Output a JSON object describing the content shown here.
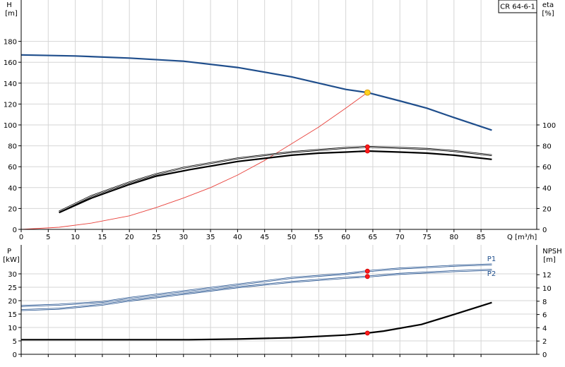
{
  "chart_data": [
    {
      "type": "line",
      "panel": "upper",
      "model_label": "CR 64-6-1",
      "y_left_label": [
        "H",
        "[m]"
      ],
      "y_right_label": [
        "eta",
        "[%]"
      ],
      "x_label": "Q [m³/h]",
      "xlim": [
        0,
        90
      ],
      "x_ticks": [
        0,
        5,
        10,
        15,
        20,
        25,
        30,
        35,
        40,
        45,
        50,
        55,
        60,
        65,
        70,
        75,
        80,
        85
      ],
      "y_left_lim": [
        0,
        200
      ],
      "y_left_ticks": [
        0,
        20,
        40,
        60,
        80,
        100,
        120,
        140,
        160,
        180
      ],
      "y_right_lim": [
        0,
        200
      ],
      "y_right_ticks": [
        0,
        20,
        40,
        60,
        80,
        100
      ],
      "grid": true,
      "series": [
        {
          "role": "head",
          "color": "#1f4e8c",
          "x": [
            0,
            10,
            20,
            30,
            40,
            50,
            55,
            60,
            64,
            70,
            75,
            80,
            87
          ],
          "y": [
            167,
            166,
            164,
            161,
            155,
            146,
            140,
            134,
            131,
            123,
            116,
            107,
            95
          ]
        },
        {
          "role": "system-curve",
          "color": "#e8413b",
          "x": [
            0,
            7,
            13,
            20,
            25,
            30,
            35,
            40,
            45,
            50,
            55,
            60,
            64
          ],
          "y": [
            0,
            2,
            6,
            13,
            21,
            30,
            40,
            52,
            66,
            82,
            98,
            116,
            131
          ]
        },
        {
          "role": "efficiency-outline",
          "color": "#000000",
          "x": [
            7,
            13,
            20,
            25,
            30,
            40,
            50,
            55,
            60,
            64,
            70,
            75,
            80,
            87
          ],
          "y": [
            17,
            32,
            45,
            53,
            59,
            68,
            74,
            76,
            78,
            79,
            78,
            77,
            75,
            71
          ]
        },
        {
          "role": "efficiency",
          "color": "#000000",
          "x": [
            7,
            13,
            20,
            25,
            31,
            40,
            50,
            55,
            60,
            64,
            70,
            75,
            80,
            87
          ],
          "y": [
            16,
            30,
            43,
            51,
            57,
            65,
            71,
            73,
            74,
            75,
            74,
            73,
            71,
            67
          ]
        }
      ],
      "points": [
        {
          "x": 64,
          "y": 131,
          "color": "#ffd21f"
        },
        {
          "x": 64,
          "y": 79,
          "color": "#ff1a1a"
        },
        {
          "x": 64,
          "y": 75,
          "color": "#ff1a1a"
        }
      ]
    },
    {
      "type": "line",
      "panel": "lower",
      "y_left_label": [
        "P",
        "[kW]"
      ],
      "y_right_label": [
        "NPSH",
        "[m]"
      ],
      "xlim": [
        0,
        90
      ],
      "x_ticks": [
        0,
        5,
        10,
        15,
        20,
        25,
        30,
        35,
        40,
        45,
        50,
        55,
        60,
        65,
        70,
        75,
        80,
        85
      ],
      "y_left_lim": [
        0,
        40
      ],
      "y_left_ticks": [
        0,
        5,
        10,
        15,
        20,
        25,
        30
      ],
      "y_right_lim": [
        0,
        16
      ],
      "y_right_ticks": [
        0,
        2,
        4,
        6,
        8,
        10,
        12
      ],
      "grid": true,
      "series": [
        {
          "name": "P1",
          "color": "#1f4e8c",
          "axis": "left",
          "x": [
            0,
            7,
            15,
            20,
            30,
            40,
            50,
            60,
            64,
            70,
            80,
            87
          ],
          "y": [
            18,
            18.5,
            19.5,
            21,
            23.5,
            26,
            28.5,
            30,
            31,
            32,
            33,
            33.5
          ]
        },
        {
          "name": "P2",
          "color": "#1f4e8c",
          "axis": "left",
          "x": [
            0,
            7,
            15,
            20,
            30,
            40,
            50,
            60,
            64,
            70,
            80,
            87
          ],
          "y": [
            16.5,
            17,
            18.5,
            20,
            22.5,
            25,
            27,
            28.5,
            29,
            30,
            31,
            31.5
          ]
        },
        {
          "role": "npsh",
          "color": "#000000",
          "axis": "right",
          "x": [
            0,
            31,
            40,
            50,
            60,
            64,
            67,
            74,
            80,
            87
          ],
          "y": [
            2.2,
            2.2,
            2.3,
            2.5,
            2.9,
            3.2,
            3.5,
            4.5,
            6,
            7.8
          ]
        }
      ],
      "points": [
        {
          "x": 64,
          "y": 31,
          "axis": "left",
          "color": "#ff1a1a"
        },
        {
          "x": 64,
          "y": 29,
          "axis": "left",
          "color": "#ff1a1a"
        },
        {
          "x": 64,
          "y": 3.2,
          "axis": "right",
          "color": "#ff1a1a"
        }
      ]
    }
  ]
}
